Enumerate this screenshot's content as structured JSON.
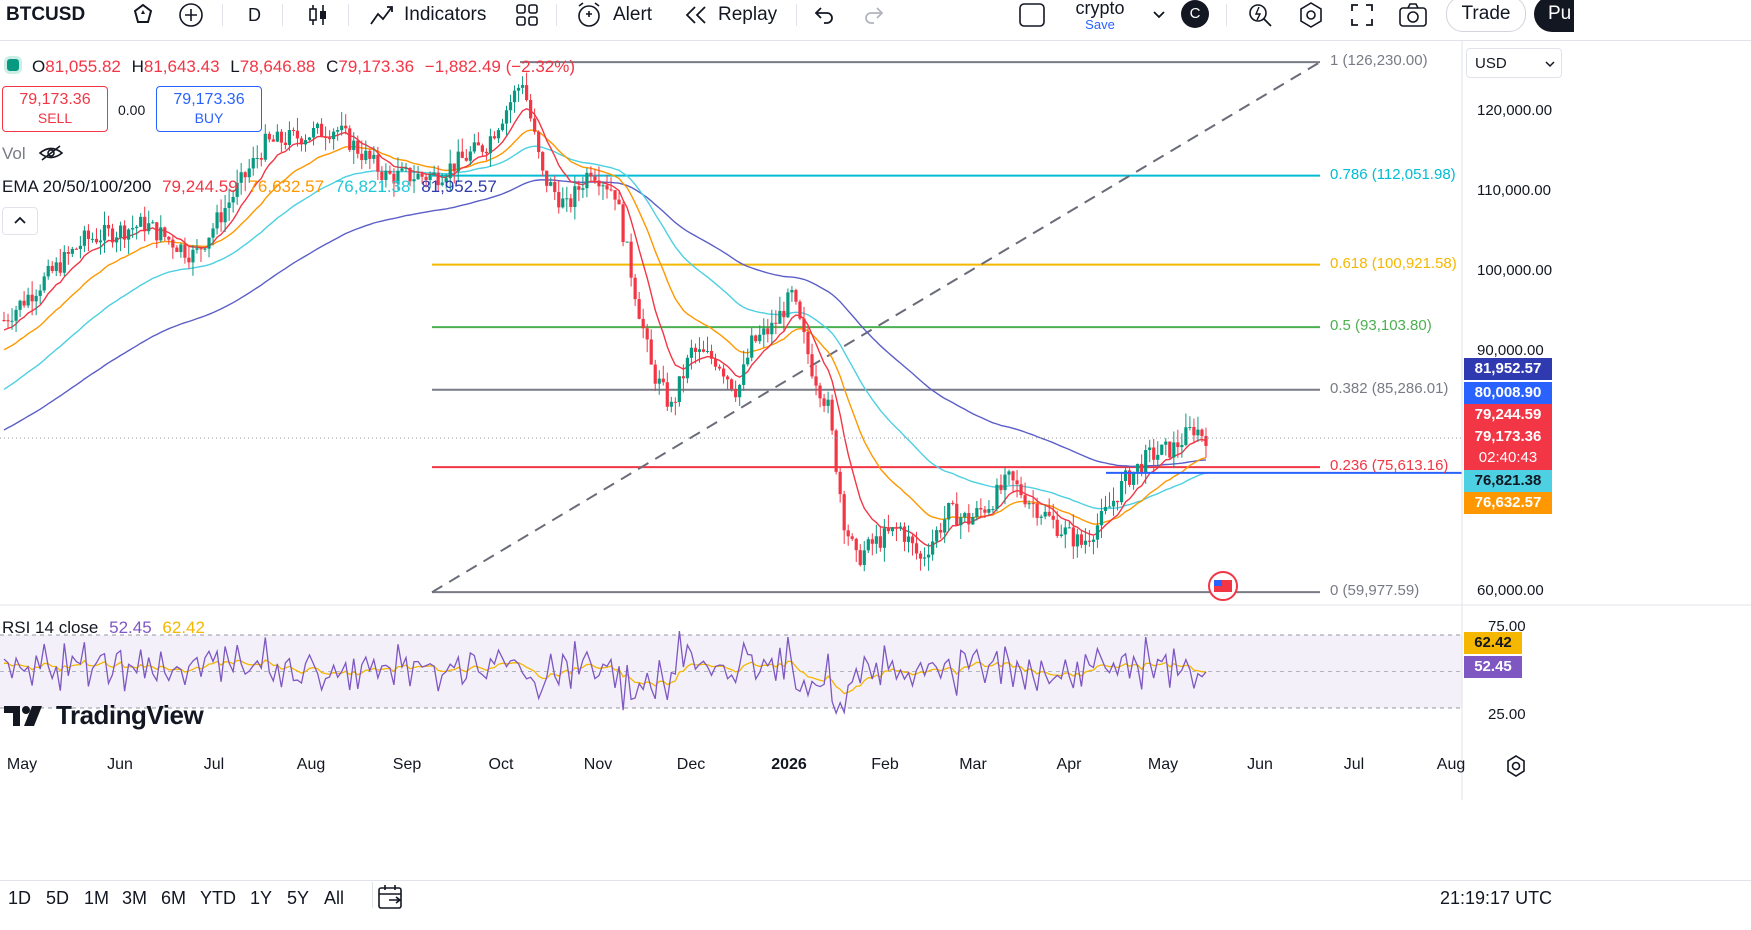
{
  "toolbar": {
    "symbol": "BTCUSD",
    "interval": "D",
    "indicators_label": "Indicators",
    "alert_label": "Alert",
    "replay_label": "Replay",
    "layout_name": "crypto",
    "layout_save": "Save",
    "avatar_letter": "C",
    "trade_label": "Trade",
    "publish_label": "Pu"
  },
  "ohlc": {
    "o_label": "O",
    "o": "81,055.82",
    "h_label": "H",
    "h": "81,643.43",
    "l_label": "L",
    "l": "78,646.88",
    "c_label": "C",
    "c": "79,173.36",
    "change": "−1,882.49 (−2.32%)"
  },
  "trade_panel": {
    "sell_price": "79,173.36",
    "sell_label": "SELL",
    "spread": "0.00",
    "buy_price": "79,173.36",
    "buy_label": "BUY"
  },
  "vol_label": "Vol",
  "ema_legend": {
    "label": "EMA 20/50/100/200",
    "v20": "79,244.59",
    "v50": "76,632.57",
    "v100": "76,821.38",
    "v200": "81,952.57"
  },
  "currency": "USD",
  "price_axis": [
    "120,000.00",
    "110,000.00",
    "100,000.00",
    "90,000.00",
    "60,000.00"
  ],
  "price_tags": {
    "ema200": "81,952.57",
    "blue_line": "80,008.90",
    "ema20": "79,244.59",
    "last": "79,173.36",
    "countdown": "02:40:43",
    "ema100": "76,821.38",
    "ema50": "76,632.57"
  },
  "fib_levels": [
    {
      "ratio": "1",
      "price": "126,230.00",
      "label": "1 (126,230.00)",
      "color": "#787b86"
    },
    {
      "ratio": "0.786",
      "price": "112,051.98",
      "label": "0.786 (112,051.98)",
      "color": "#00bcd4"
    },
    {
      "ratio": "0.618",
      "price": "100,921.58",
      "label": "0.618 (100,921.58)",
      "color": "#f5b700"
    },
    {
      "ratio": "0.5",
      "price": "93,103.80",
      "label": "0.5 (93,103.80)",
      "color": "#4caf50"
    },
    {
      "ratio": "0.382",
      "price": "85,286.01",
      "label": "0.382 (85,286.01)",
      "color": "#787b86"
    },
    {
      "ratio": "0.236",
      "price": "75,613.16",
      "label": "0.236 (75,613.16)",
      "color": "#f23645"
    },
    {
      "ratio": "0",
      "price": "59,977.59",
      "label": "0 (59,977.59)",
      "color": "#787b86"
    }
  ],
  "rsi": {
    "label": "RSI 14 close",
    "value": "52.45",
    "ma": "62.42",
    "axis": [
      "75.00",
      "25.00"
    ],
    "tag_rsi": "52.45",
    "tag_ma": "62.42"
  },
  "brand": "TradingView",
  "time_axis": [
    "May",
    "Jun",
    "Jul",
    "Aug",
    "Sep",
    "Oct",
    "Nov",
    "Dec",
    "2026",
    "Feb",
    "Mar",
    "Apr",
    "May",
    "Jun",
    "Jul",
    "Aug"
  ],
  "ranges": [
    "1D",
    "5D",
    "1M",
    "3M",
    "6M",
    "YTD",
    "1Y",
    "5Y",
    "All"
  ],
  "clock": "21:19:17 UTC",
  "colors": {
    "up": "#089981",
    "down": "#f23645",
    "ema20": "#f23645",
    "ema50": "#ff9800",
    "ema100": "#4dd0e1",
    "ema200": "#5b5fc7",
    "rsi": "#7e57c2",
    "rsi_ma": "#f5b700",
    "accent": "#2962ff"
  }
}
